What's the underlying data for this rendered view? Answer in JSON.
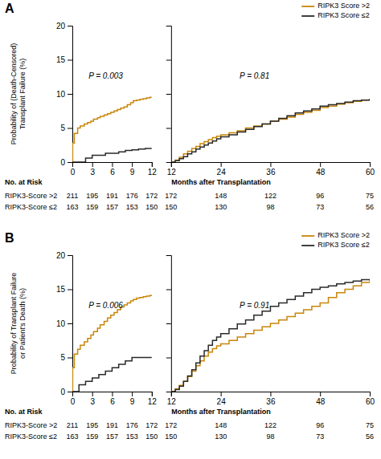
{
  "chart_data": [
    {
      "type": "step",
      "title": "A",
      "y_label": "Probability of (Death-Censored)\nTransplant Failure (%)",
      "annotations": [
        "P = 0.003"
      ],
      "xlim": [
        0,
        12
      ],
      "ylim": [
        0,
        20
      ],
      "xticks": [
        0,
        3,
        6,
        9,
        12
      ],
      "yticks": [
        0,
        5,
        10,
        15,
        20
      ],
      "series": [
        {
          "color": "#C8860A",
          "x": [
            0,
            0.05,
            0.3,
            0.8,
            1.2,
            1.8,
            2.3,
            2.8,
            3.2,
            3.8,
            4.2,
            4.8,
            5.3,
            5.8,
            6.3,
            6.8,
            7.3,
            7.8,
            8.3,
            8.8,
            9.2,
            9.7,
            10.2,
            10.7,
            11.2,
            11.7,
            12
          ],
          "values": [
            0,
            2.8,
            4.2,
            5.0,
            5.3,
            5.6,
            5.8,
            6.0,
            6.3,
            6.5,
            6.7,
            6.9,
            7.1,
            7.3,
            7.5,
            7.7,
            7.9,
            8.1,
            8.4,
            8.7,
            9.0,
            9.1,
            9.2,
            9.3,
            9.4,
            9.5,
            9.5
          ]
        },
        {
          "color": "#2A2A2A",
          "x": [
            0,
            2,
            3,
            5,
            7,
            8,
            9,
            10,
            11,
            12
          ],
          "values": [
            0,
            0.6,
            1.0,
            1.3,
            1.5,
            1.7,
            1.8,
            1.9,
            2.0,
            2.0
          ]
        }
      ]
    },
    {
      "type": "step",
      "tick_labels": "x",
      "legend": "upper right",
      "annotations": [
        "P = 0.81"
      ],
      "xlim": [
        12,
        60
      ],
      "ylim": [
        0,
        20
      ],
      "xticks": [
        12,
        24,
        36,
        48,
        60
      ],
      "yticks": [
        0,
        5,
        10,
        15,
        20
      ],
      "series": [
        {
          "name": "RIPK3 Score >2",
          "color": "#C8860A",
          "x": [
            12,
            13,
            14,
            15,
            16,
            17,
            18,
            19,
            20,
            21,
            22,
            23,
            24,
            26,
            28,
            30,
            32,
            34,
            36,
            38,
            40,
            42,
            44,
            46,
            48,
            50,
            52,
            54,
            56,
            58,
            60
          ],
          "values": [
            0,
            0.3,
            0.7,
            1.2,
            1.6,
            2.0,
            2.3,
            2.7,
            3.0,
            3.3,
            3.6,
            3.8,
            4.0,
            4.3,
            4.6,
            5.0,
            5.3,
            5.6,
            6.0,
            6.3,
            6.6,
            7.0,
            7.3,
            7.6,
            8.0,
            8.2,
            8.5,
            8.7,
            8.9,
            9.1,
            9.3
          ]
        },
        {
          "name": "RIPK3 Score ≤2",
          "color": "#2A2A2A",
          "x": [
            12,
            13,
            14,
            15,
            16,
            17,
            18,
            19,
            20,
            21,
            22,
            23,
            24,
            26,
            28,
            30,
            32,
            34,
            36,
            38,
            40,
            42,
            44,
            46,
            48,
            50,
            52,
            54,
            56,
            58,
            60
          ],
          "values": [
            0,
            0.2,
            0.5,
            0.8,
            1.2,
            1.5,
            1.9,
            2.2,
            2.5,
            2.8,
            3.1,
            3.4,
            3.7,
            4.0,
            4.4,
            4.8,
            5.2,
            5.6,
            6.0,
            6.4,
            6.8,
            7.2,
            7.5,
            7.8,
            8.2,
            8.4,
            8.6,
            8.8,
            9.0,
            9.1,
            9.3
          ]
        }
      ]
    },
    {
      "type": "table",
      "title": "No. at Risk",
      "x_label": "Months after Transplantation",
      "rows": [
        {
          "name": "RIPK3-Score >2",
          "values": [
            211,
            195,
            191,
            176,
            172,
            172,
            148,
            122,
            96,
            75
          ]
        },
        {
          "name": "RIPK3-Score ≤2",
          "values": [
            163,
            159,
            157,
            153,
            150,
            150,
            130,
            98,
            73,
            56
          ]
        }
      ]
    },
    {
      "type": "step",
      "title": "B",
      "y_label": "Probability of Transplant Failure\nor Patient's Death (%)",
      "annotations": [
        "P = 0.006"
      ],
      "xlim": [
        0,
        12
      ],
      "ylim": [
        0,
        20
      ],
      "xticks": [
        0,
        3,
        6,
        9,
        12
      ],
      "yticks": [
        0,
        5,
        10,
        15,
        20
      ],
      "series": [
        {
          "color": "#C8860A",
          "x": [
            0,
            0.05,
            0.3,
            0.8,
            1.2,
            1.8,
            2.3,
            2.8,
            3.2,
            3.8,
            4.2,
            4.8,
            5.3,
            5.8,
            6.3,
            6.8,
            7.3,
            7.8,
            8.3,
            8.8,
            9.2,
            9.7,
            10.2,
            10.7,
            11.2,
            11.7,
            12
          ],
          "values": [
            0,
            3.5,
            5.5,
            6.2,
            6.8,
            7.3,
            7.8,
            8.3,
            8.8,
            9.3,
            9.8,
            10.3,
            10.8,
            11.2,
            11.6,
            12.0,
            12.4,
            12.7,
            13.0,
            13.3,
            13.5,
            13.7,
            13.8,
            13.9,
            14.0,
            14.1,
            14.2
          ]
        },
        {
          "color": "#2A2A2A",
          "x": [
            0,
            1,
            2,
            3,
            4,
            5,
            6,
            7,
            8,
            9,
            10,
            11,
            12
          ],
          "values": [
            0,
            1.0,
            1.5,
            2.0,
            2.5,
            3.0,
            3.5,
            4.0,
            4.5,
            5.0,
            5.0,
            5.0,
            5.0
          ]
        }
      ]
    },
    {
      "type": "step",
      "tick_labels": "x",
      "legend": "upper right",
      "annotations": [
        "P = 0.91"
      ],
      "xlim": [
        12,
        60
      ],
      "ylim": [
        0,
        20
      ],
      "xticks": [
        12,
        24,
        36,
        48,
        60
      ],
      "yticks": [
        0,
        5,
        10,
        15,
        20
      ],
      "series": [
        {
          "name": "RIPK3 Score >2",
          "color": "#C8860A",
          "x": [
            12,
            13,
            14,
            15,
            16,
            17,
            18,
            19,
            20,
            21,
            22,
            23,
            24,
            26,
            28,
            30,
            32,
            34,
            36,
            38,
            40,
            42,
            44,
            46,
            48,
            50,
            52,
            54,
            56,
            58,
            60
          ],
          "values": [
            0,
            0.4,
            0.9,
            1.5,
            2.2,
            3.0,
            3.8,
            4.5,
            5.2,
            5.8,
            6.3,
            6.7,
            7.0,
            7.5,
            8.0,
            8.5,
            9.0,
            9.5,
            10.0,
            10.5,
            11.0,
            11.5,
            12.0,
            12.5,
            13.0,
            13.8,
            14.5,
            15.0,
            15.5,
            16.0,
            16.5
          ]
        },
        {
          "name": "RIPK3 Score ≤2",
          "color": "#2A2A2A",
          "x": [
            12,
            13,
            14,
            15,
            16,
            17,
            18,
            19,
            20,
            21,
            22,
            23,
            24,
            26,
            28,
            30,
            32,
            34,
            36,
            38,
            40,
            42,
            44,
            46,
            48,
            50,
            52,
            54,
            56,
            58,
            60
          ],
          "values": [
            0,
            0.3,
            0.8,
            1.5,
            2.3,
            3.2,
            4.2,
            5.2,
            6.0,
            6.8,
            7.5,
            8.0,
            8.5,
            9.2,
            9.9,
            10.5,
            11.2,
            11.8,
            12.5,
            13.0,
            13.5,
            14.0,
            14.5,
            15.0,
            15.3,
            15.5,
            15.8,
            16.0,
            16.2,
            16.4,
            16.5
          ]
        }
      ]
    },
    {
      "type": "table",
      "title": "No. at Risk",
      "x_label": "Months after Transplantation",
      "rows": [
        {
          "name": "RIPK3-Score >2",
          "values": [
            211,
            195,
            191,
            176,
            172,
            172,
            148,
            122,
            96,
            75
          ]
        },
        {
          "name": "RIPK3-Score ≤2",
          "values": [
            163,
            159,
            157,
            153,
            150,
            150,
            130,
            98,
            73,
            56
          ]
        }
      ]
    }
  ]
}
